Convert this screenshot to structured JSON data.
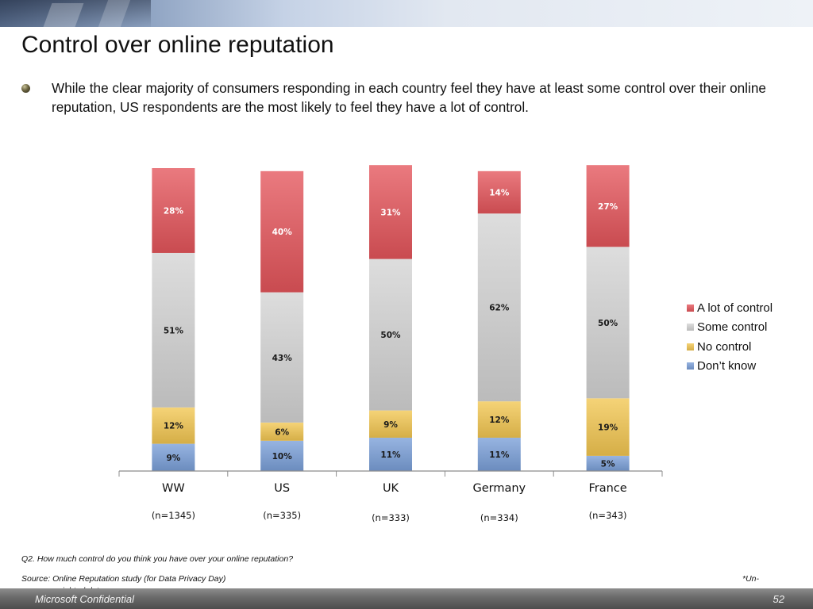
{
  "slide": {
    "title": "Control over online reputation",
    "bullet": "While the clear majority of consumers responding in each country feel they have at least some control over their online reputation, US respondents are the most likely to feel they have a lot of control.",
    "question_note": "Q2. How much control do you think you have over your online reputation?",
    "source_note": "Source: Online Reputation study (for Data Privacy Day)",
    "unweighted_note_1": "*Un-",
    "unweighted_note_2": "weighted data",
    "footer_label": "Microsoft Confidential",
    "page_number": "52"
  },
  "chart_data": {
    "type": "bar",
    "stacked": true,
    "percent": true,
    "categories": [
      "WW",
      "US",
      "UK",
      "Germany",
      "France"
    ],
    "sample_sizes": [
      "(n=1345)",
      "(n=335)",
      "(n=333)",
      "(n=334)",
      "(n=343)"
    ],
    "series": [
      {
        "name": "Don’t know",
        "color": "#7a9fd8",
        "values": [
          9,
          10,
          11,
          11,
          5
        ]
      },
      {
        "name": "No control",
        "color": "#f2c651",
        "values": [
          12,
          6,
          9,
          12,
          19
        ]
      },
      {
        "name": "Some control",
        "color": "#d4d4d4",
        "values": [
          51,
          43,
          50,
          62,
          50
        ]
      },
      {
        "name": "A lot of control",
        "color": "#e4555b",
        "values": [
          28,
          40,
          31,
          14,
          27
        ]
      }
    ],
    "legend_position": "right",
    "legend_order": [
      "A lot of control",
      "Some control",
      "No control",
      "Don’t know"
    ],
    "ylim": [
      0,
      100
    ],
    "grid": false
  }
}
